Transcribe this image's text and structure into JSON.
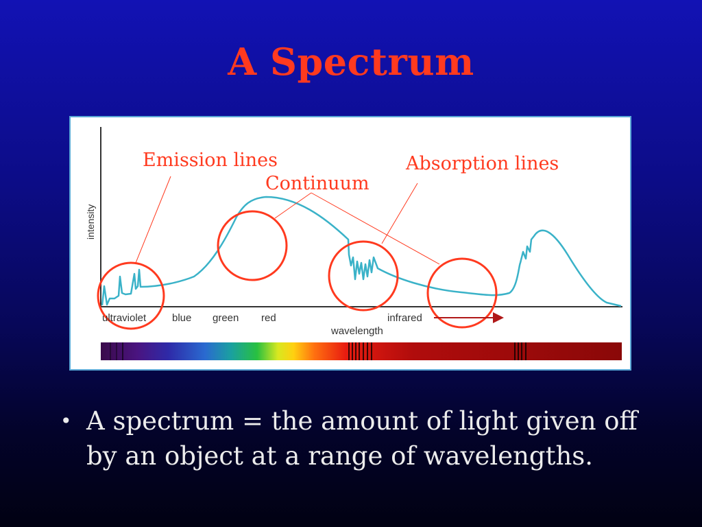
{
  "slide": {
    "title": "A Spectrum",
    "bullet_text": "A spectrum = the amount of light given off by an object at a range of wavelengths.",
    "bullet_marker": "•"
  },
  "diagram": {
    "annotations": {
      "emission": "Emission lines",
      "continuum": "Continuum",
      "absorption": "Absorption lines"
    },
    "axis": {
      "ylabel": "intensity",
      "xlabel": "wavelength",
      "regions": [
        "ultraviolet",
        "blue",
        "green",
        "red",
        "infrared"
      ]
    },
    "colors": {
      "curve": "#3ab2c8",
      "circle": "#ff3a1f",
      "arrow": "#b01818",
      "title": "#ff3a1f"
    }
  }
}
